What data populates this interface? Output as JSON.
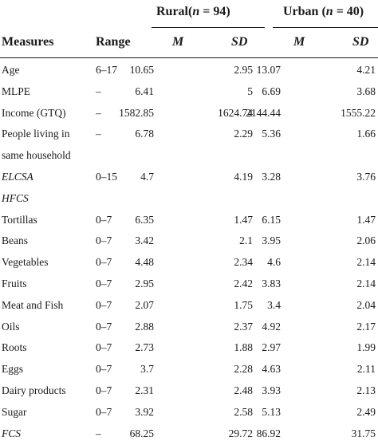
{
  "table": {
    "groups": [
      {
        "label": "Rural",
        "n_prefix": "(",
        "n_symbol": "n",
        "n_value": " = 94)"
      },
      {
        "label": "Urban",
        "n_prefix": " (",
        "n_symbol": "n",
        "n_value": " = 40)"
      }
    ],
    "columns": {
      "measures": "Measures",
      "range": "Range",
      "rural_m": "M",
      "rural_sd": "SD",
      "urban_m": "M",
      "urban_sd": "SD"
    },
    "rows": [
      {
        "measure": "Age",
        "range": "6–17",
        "rural_m": "10.65",
        "rural_sd": "2.95",
        "urban_m": "13.07",
        "urban_sd": "4.21"
      },
      {
        "measure": "MLPE",
        "range": "–",
        "rural_m": "6.41",
        "rural_sd": "5",
        "urban_m": "6.69",
        "urban_sd": "3.68"
      },
      {
        "measure": "Income (GTQ)",
        "range": "–",
        "rural_m": "1582.85",
        "rural_sd": "1624.74",
        "urban_m": "2144.44",
        "urban_sd": "1555.22"
      },
      {
        "measure": "People living in",
        "range": "–",
        "rural_m": "6.78",
        "rural_sd": "2.29",
        "urban_m": "5.36",
        "urban_sd": "1.66"
      },
      {
        "measure": "same household",
        "range": "",
        "rural_m": "",
        "rural_sd": "",
        "urban_m": "",
        "urban_sd": ""
      },
      {
        "measure": "ELCSA",
        "range": "0–15",
        "rural_m": "4.7",
        "rural_sd": "4.19",
        "urban_m": "3.28",
        "urban_sd": "3.76"
      },
      {
        "measure": "HFCS",
        "range": "",
        "rural_m": "",
        "rural_sd": "",
        "urban_m": "",
        "urban_sd": ""
      },
      {
        "measure": "Tortillas",
        "range": "0–7",
        "rural_m": "6.35",
        "rural_sd": "1.47",
        "urban_m": "6.15",
        "urban_sd": "1.47"
      },
      {
        "measure": "Beans",
        "range": "0–7",
        "rural_m": "3.42",
        "rural_sd": "2.1",
        "urban_m": "3.95",
        "urban_sd": "2.06"
      },
      {
        "measure": "Vegetables",
        "range": "0–7",
        "rural_m": "4.48",
        "rural_sd": "2.34",
        "urban_m": "4.6",
        "urban_sd": "2.14"
      },
      {
        "measure": "Fruits",
        "range": "0–7",
        "rural_m": "2.95",
        "rural_sd": "2.42",
        "urban_m": "3.83",
        "urban_sd": "2.14"
      },
      {
        "measure": "Meat and Fish",
        "range": "0–7",
        "rural_m": "2.07",
        "rural_sd": "1.75",
        "urban_m": "3.4",
        "urban_sd": "2.04"
      },
      {
        "measure": "Oils",
        "range": "0–7",
        "rural_m": "2.88",
        "rural_sd": "2.37",
        "urban_m": "4.92",
        "urban_sd": "2.17"
      },
      {
        "measure": "Roots",
        "range": "0–7",
        "rural_m": "2.73",
        "rural_sd": "1.88",
        "urban_m": "2.97",
        "urban_sd": "1.99"
      },
      {
        "measure": "Eggs",
        "range": "0–7",
        "rural_m": "3.7",
        "rural_sd": "2.28",
        "urban_m": "4.63",
        "urban_sd": "2.11"
      },
      {
        "measure": "Dairy products",
        "range": "0–7",
        "rural_m": "2.31",
        "rural_sd": "2.48",
        "urban_m": "3.93",
        "urban_sd": "2.13"
      },
      {
        "measure": "Sugar",
        "range": "0–7",
        "rural_m": "3.92",
        "rural_sd": "2.58",
        "urban_m": "5.13",
        "urban_sd": "2.49"
      },
      {
        "measure": "FCS",
        "range": "–",
        "rural_m": "68.25",
        "rural_sd": "29.72",
        "urban_m": "86.92",
        "urban_sd": "31.75"
      }
    ],
    "italic_measures": [
      "ELCSA",
      "HFCS",
      "FCS"
    ]
  }
}
